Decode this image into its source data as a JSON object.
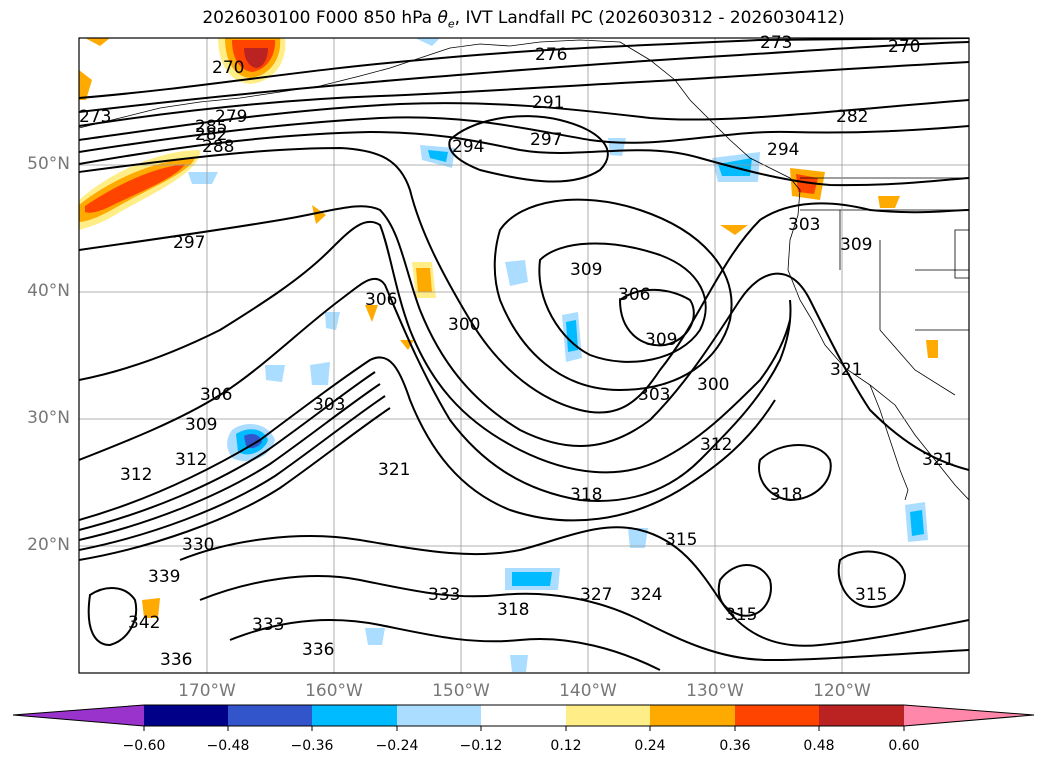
{
  "title_main": "2026030100 F000 850 hPa ",
  "title_symbol": "θ",
  "title_sub": "e",
  "title_rest": ", IVT Landfall PC (2026030312 - 2026030412)",
  "lat_labels": [
    "50°N",
    "40°N",
    "30°N",
    "20°N"
  ],
  "lon_labels": [
    "170°W",
    "160°W",
    "150°W",
    "140°W",
    "130°W",
    "120°W"
  ],
  "colorbar": {
    "ticks": [
      "−0.60",
      "−0.48",
      "−0.36",
      "−0.24",
      "−0.12",
      "0.12",
      "0.24",
      "0.36",
      "0.48",
      "0.60"
    ],
    "colors": [
      "#9933cc",
      "#000088",
      "#3355cc",
      "#00bbff",
      "#aaddff",
      "#ffffff",
      "#ffee88",
      "#ffaa00",
      "#ff4400",
      "#bb2222",
      "#ff88aa"
    ]
  },
  "contour_labels": [
    "270",
    "270",
    "273",
    "273",
    "276",
    "279",
    "282",
    "282",
    "285",
    "288",
    "291",
    "294",
    "294",
    "297",
    "297",
    "300",
    "300",
    "303",
    "303",
    "303",
    "306",
    "306",
    "306",
    "309",
    "309",
    "309",
    "309",
    "312",
    "312",
    "312",
    "315",
    "315",
    "315",
    "318",
    "318",
    "318",
    "321",
    "321",
    "321",
    "324",
    "327",
    "330",
    "333",
    "333",
    "336",
    "336",
    "339",
    "342"
  ]
}
